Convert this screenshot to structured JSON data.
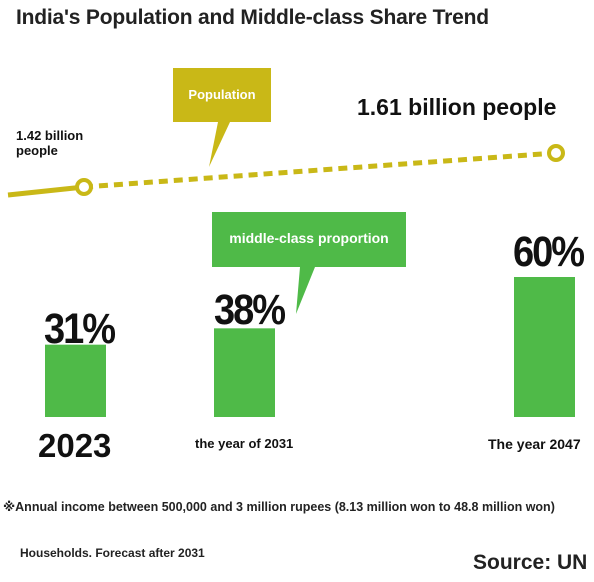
{
  "title": "India's Population and Middle-class Share Trend",
  "colors": {
    "population_line": "#c9b817",
    "bar": "#4fba48",
    "callout_population": "#c9b817",
    "callout_middle_class": "#4fba48"
  },
  "callouts": {
    "population": "Population",
    "middle_class": "middle-class proportion"
  },
  "population": {
    "start_label": "1.42 billion people",
    "end_label": "1.61 billion people"
  },
  "footnote": "※Annual income between 500,000 and 3 million rupees (8.13 million won to 48.8 million won)",
  "households_note": "Households. Forecast after 2031",
  "source": "Source: UN",
  "chart_data": {
    "type": "bar",
    "title": "India's Population and Middle-class Share Trend",
    "categories": [
      "2023",
      "the year of 2031",
      "The year 2047"
    ],
    "series": [
      {
        "name": "middle-class proportion",
        "values": [
          31,
          38,
          60
        ],
        "unit": "%"
      }
    ],
    "value_labels": [
      "31%",
      "38%",
      "60%"
    ],
    "population_line": {
      "name": "Population",
      "x": [
        "2023",
        "The year 2047"
      ],
      "values_billion": [
        1.42,
        1.61
      ],
      "labels": [
        "1.42 billion people",
        "1.61 billion people"
      ],
      "style": "dashed"
    },
    "ylim": [
      0,
      60
    ],
    "grid": false,
    "legend": "none"
  }
}
